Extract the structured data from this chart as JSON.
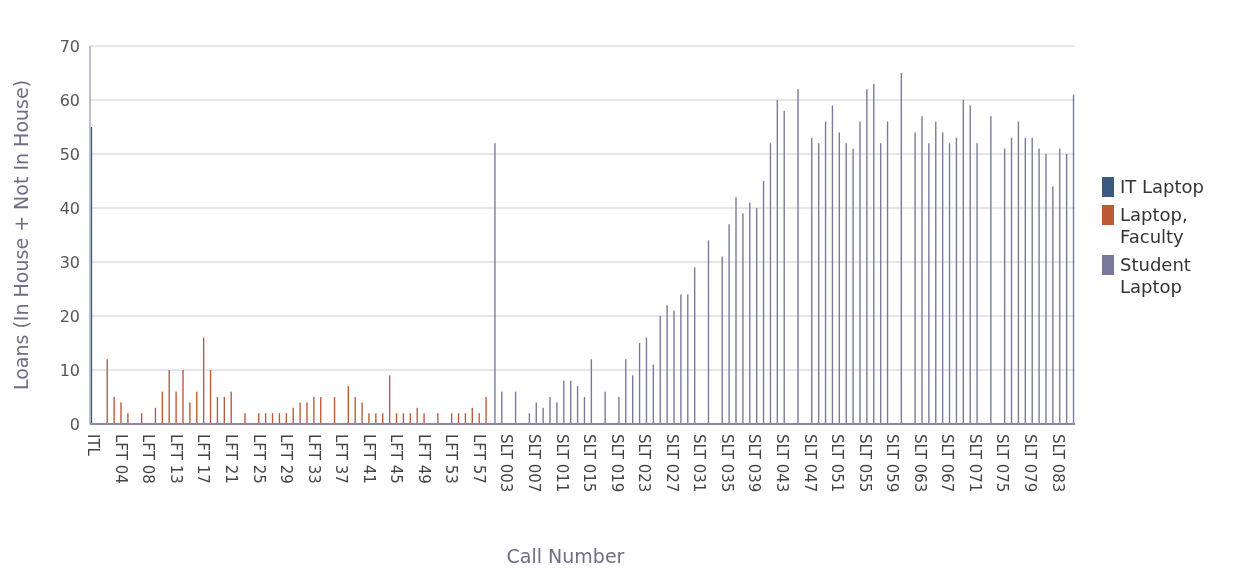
{
  "chart_data": {
    "type": "bar",
    "xlabel": "Call Number",
    "ylabel": "Loans (In House + Not In House)",
    "categories": [
      "ITL",
      null,
      null,
      null,
      "LFT 04",
      null,
      null,
      null,
      "LFT 08",
      null,
      null,
      null,
      "LFT 13",
      null,
      null,
      null,
      "LFT 17",
      null,
      null,
      null,
      "LFT 21",
      null,
      null,
      null,
      "LFT 25",
      null,
      null,
      null,
      "LFT 29",
      null,
      null,
      null,
      "LFT 33",
      null,
      null,
      null,
      "LFT 37",
      null,
      null,
      null,
      "LFT 41",
      null,
      null,
      null,
      "LFT 45",
      null,
      null,
      null,
      "LFT 49",
      null,
      null,
      null,
      "LFT 53",
      null,
      null,
      null,
      "LFT 57",
      null,
      null,
      null,
      "SLT 003",
      null,
      null,
      null,
      "SLT 007",
      null,
      null,
      null,
      "SLT 011",
      null,
      null,
      null,
      "SLT 015",
      null,
      null,
      null,
      "SLT 019",
      null,
      null,
      null,
      "SLT 023",
      null,
      null,
      null,
      "SLT 027",
      null,
      null,
      null,
      "SLT 031",
      null,
      null,
      null,
      "SLT 035",
      null,
      null,
      null,
      "SLT 039",
      null,
      null,
      null,
      "SLT 043",
      null,
      null,
      null,
      "SLT 047",
      null,
      null,
      null,
      "SLT 051",
      null,
      null,
      null,
      "SLT 055",
      null,
      null,
      null,
      "SLT 059",
      null,
      null,
      null,
      "SLT 063",
      null,
      null,
      null,
      "SLT 067",
      null,
      null,
      null,
      "SLT 071",
      null,
      null,
      null,
      "SLT 075",
      null,
      null,
      null,
      "SLT 079",
      null,
      null,
      null,
      "SLT 083",
      null,
      null
    ],
    "series": [
      {
        "name": "IT Laptop",
        "color": "#3b5a7e",
        "values": [
          55,
          null,
          null,
          null,
          null,
          null,
          null,
          null,
          null,
          null,
          null,
          null,
          null,
          null,
          null,
          null,
          null,
          null,
          null,
          null,
          null,
          null,
          null,
          null,
          null,
          null,
          null,
          null,
          null,
          null,
          null,
          null,
          null,
          null,
          null,
          null,
          null,
          null,
          null,
          null,
          null,
          null,
          null,
          null,
          null,
          null,
          null,
          null,
          null,
          null,
          null,
          null,
          null,
          null,
          null,
          null,
          null,
          null,
          null,
          null,
          null,
          null,
          null,
          null,
          null,
          null,
          null,
          null,
          null,
          null,
          null,
          null,
          null,
          null,
          null,
          null,
          null,
          null,
          null,
          null,
          null,
          null,
          null,
          null,
          null,
          null,
          null,
          null,
          null,
          null,
          null,
          null,
          null,
          null,
          null,
          null,
          null,
          null,
          null,
          null,
          null,
          null,
          null,
          null,
          null,
          null,
          null,
          null,
          null,
          null,
          null,
          null,
          null,
          null,
          null,
          null,
          null,
          null,
          null,
          null,
          null,
          null,
          null,
          null,
          null,
          null,
          null,
          null,
          null,
          null,
          null,
          null,
          null,
          null,
          null,
          null,
          null,
          null,
          null,
          null,
          null,
          null,
          null
        ]
      },
      {
        "name": "Laptop, Faculty",
        "color": "#bb5a36",
        "values": [
          null,
          null,
          12,
          5,
          4,
          2,
          null,
          2,
          null,
          3,
          6,
          10,
          6,
          10,
          4,
          6,
          16,
          10,
          5,
          5,
          6,
          null,
          2,
          null,
          2,
          2,
          2,
          2,
          2,
          3,
          4,
          4,
          5,
          5,
          null,
          5,
          null,
          7,
          5,
          4,
          2,
          2,
          2,
          9,
          2,
          2,
          2,
          3,
          2,
          null,
          2,
          null,
          2,
          2,
          2,
          3,
          2,
          5,
          null,
          null,
          null,
          null,
          null,
          null,
          null,
          null,
          null,
          null,
          null,
          null,
          null,
          null,
          null,
          null,
          null,
          null,
          null,
          null,
          null,
          null,
          null,
          null,
          null,
          null,
          null,
          null,
          null,
          null,
          null,
          null,
          null,
          null,
          null,
          null,
          null,
          null,
          null,
          null,
          null,
          null,
          null,
          null,
          null,
          null,
          null,
          null,
          null,
          null,
          null,
          null,
          null,
          null,
          null,
          null,
          null,
          null,
          null,
          null,
          null,
          null,
          null,
          null,
          null,
          null,
          null,
          null,
          null,
          null,
          null,
          null,
          null,
          null,
          null,
          null,
          null,
          null,
          null,
          null,
          null,
          null,
          null,
          null,
          null
        ]
      },
      {
        "name": "Student Laptop",
        "color": "#77789a",
        "values": [
          null,
          null,
          null,
          null,
          null,
          null,
          null,
          null,
          null,
          null,
          null,
          null,
          null,
          null,
          null,
          null,
          null,
          null,
          null,
          null,
          null,
          null,
          null,
          null,
          null,
          null,
          null,
          null,
          null,
          null,
          null,
          null,
          null,
          null,
          null,
          null,
          null,
          null,
          null,
          null,
          null,
          null,
          null,
          null,
          null,
          null,
          null,
          null,
          null,
          null,
          null,
          null,
          null,
          null,
          null,
          null,
          null,
          null,
          52,
          6,
          null,
          6,
          null,
          2,
          4,
          3,
          5,
          4,
          8,
          8,
          7,
          5,
          12,
          null,
          6,
          null,
          5,
          12,
          9,
          15,
          16,
          11,
          20,
          22,
          21,
          24,
          24,
          29,
          null,
          34,
          null,
          31,
          37,
          42,
          39,
          41,
          40,
          45,
          52,
          60,
          58,
          null,
          62,
          null,
          53,
          52,
          56,
          59,
          54,
          52,
          51,
          56,
          62,
          63,
          52,
          56,
          null,
          65,
          null,
          54,
          57,
          52,
          56,
          54,
          52,
          53,
          60,
          59,
          52,
          null,
          57,
          null,
          51,
          53,
          56,
          53,
          53,
          51,
          50,
          44,
          51,
          50,
          61
        ]
      }
    ],
    "ylim": [
      0,
      70
    ],
    "yticks": [
      0,
      10,
      20,
      30,
      40,
      50,
      60,
      70
    ],
    "grid": "y",
    "legend": "right"
  }
}
